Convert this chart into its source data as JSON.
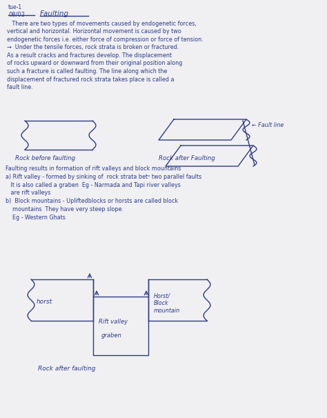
{
  "bg_color": "#f0f0f2",
  "text_color": "#2a3a8a",
  "header1": "tue-1",
  "header2": "08/02",
  "header3": "Faulting",
  "para1_lines": [
    "   There are two types of movements caused by endogenetic forces,",
    "vertical and horizontal. Horizontal movement is caused by two",
    "endogenetic forces i.e. either force of compression or force of tension.",
    "→  Under the tensile forces, rock strata is broken or fractured.",
    "As a result cracks and fractures develop. The displacement",
    "of rocks upward or downward from their original position along",
    "such a fracture is called faulting. The line along which the",
    "displacement of fractured rock strata takes place is called a",
    "fault line."
  ],
  "fig1_label": "Rock before faulting",
  "fig2_label": "Rock after Faulting",
  "fault_line_label": "← Fault line",
  "section2_lines": [
    "Faulting results in formation of rift valleys and block mountains",
    "a) Rift valley - formed by sinking of  rock strata betᵒ two parallel faults",
    "   It is also called a graben  Eg - Narmada and Tapi river valleys",
    "   are rift valleys",
    "b)  Block mountains - Upliftedblocks or horsts are called block",
    "    mountains  They have very steep slope.",
    "    Eg - Western Ghats"
  ],
  "fig3_horst_label": "horst",
  "fig3_rift_label": "Rift valley",
  "fig3_graben_label": "graben",
  "fig3_block_label": "Horst/\nBlock\nmountain",
  "fig3_caption": "Rock after faulting"
}
